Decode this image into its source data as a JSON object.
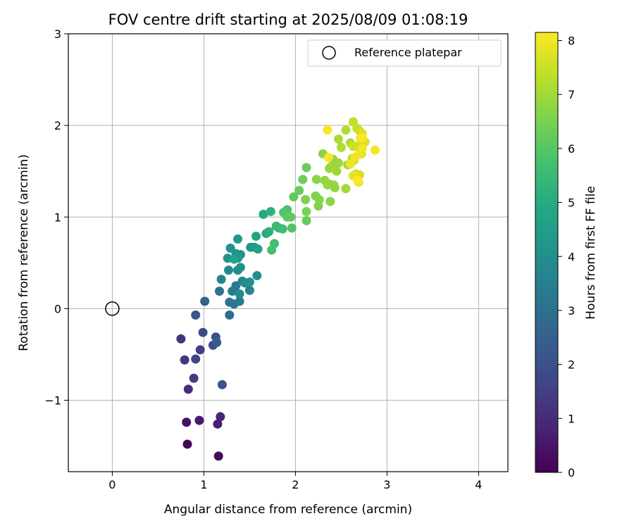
{
  "chart_data": {
    "type": "scatter",
    "title": "FOV centre drift starting at 2025/08/09 01:08:19",
    "xlabel": "Angular distance from reference (arcmin)",
    "ylabel": "Rotation from reference (arcmin)",
    "xlim": [
      -0.48,
      4.32
    ],
    "ylim": [
      -1.78,
      3.0
    ],
    "xticks": [
      0,
      1,
      2,
      3,
      4
    ],
    "yticks": [
      -1,
      0,
      1,
      2,
      3
    ],
    "xtick_labels": [
      "0",
      "1",
      "2",
      "3",
      "4"
    ],
    "ytick_labels": [
      "−1",
      "0",
      "1",
      "2",
      "3"
    ],
    "grid": true,
    "legend": {
      "position": "top-right",
      "entries": [
        "Reference platepar"
      ]
    },
    "colorbar": {
      "label": "Hours from first FF file",
      "range": [
        0,
        8.15
      ],
      "ticks": [
        0,
        1,
        2,
        3,
        4,
        5,
        6,
        7,
        8
      ],
      "tick_labels": [
        "0",
        "1",
        "2",
        "3",
        "4",
        "5",
        "6",
        "7",
        "8"
      ],
      "colormap": "viridis"
    },
    "reference_point": {
      "x": 0,
      "y": 0
    },
    "points": [
      [
        0.82,
        -1.48,
        0.1
      ],
      [
        1.16,
        -1.61,
        0.2
      ],
      [
        0.81,
        -1.24,
        0.4
      ],
      [
        0.95,
        -1.22,
        0.55
      ],
      [
        1.15,
        -1.26,
        0.7
      ],
      [
        1.18,
        -1.18,
        0.85
      ],
      [
        0.83,
        -0.88,
        1.0
      ],
      [
        0.75,
        -0.33,
        1.2
      ],
      [
        0.79,
        -0.56,
        1.3
      ],
      [
        0.89,
        -0.76,
        1.45
      ],
      [
        0.96,
        -0.45,
        1.5
      ],
      [
        0.91,
        -0.55,
        1.6
      ],
      [
        0.99,
        -0.26,
        1.8
      ],
      [
        1.1,
        -0.4,
        1.9
      ],
      [
        1.13,
        -0.31,
        2.0
      ],
      [
        1.2,
        -0.83,
        2.1
      ],
      [
        0.91,
        -0.07,
        2.2
      ],
      [
        1.14,
        -0.37,
        2.3
      ],
      [
        1.01,
        0.08,
        2.5
      ],
      [
        1.28,
        -0.07,
        2.9
      ],
      [
        1.17,
        0.19,
        3.0
      ],
      [
        1.28,
        0.07,
        3.1
      ],
      [
        1.33,
        0.05,
        3.2
      ],
      [
        1.35,
        0.25,
        3.3
      ],
      [
        1.31,
        0.19,
        3.4
      ],
      [
        1.39,
        0.08,
        3.5
      ],
      [
        1.42,
        0.3,
        3.6
      ],
      [
        1.5,
        0.2,
        3.6
      ],
      [
        1.19,
        0.32,
        3.7
      ],
      [
        1.27,
        0.42,
        3.8
      ],
      [
        1.37,
        0.42,
        3.9
      ],
      [
        1.39,
        0.16,
        3.9
      ],
      [
        1.45,
        0.28,
        3.95
      ],
      [
        1.5,
        0.29,
        4.0
      ],
      [
        1.58,
        0.36,
        4.0
      ],
      [
        1.4,
        0.45,
        4.05
      ],
      [
        1.29,
        0.66,
        4.1
      ],
      [
        1.26,
        0.55,
        4.15
      ],
      [
        1.35,
        0.6,
        4.2
      ],
      [
        1.4,
        0.59,
        4.2
      ],
      [
        1.37,
        0.55,
        4.25
      ],
      [
        1.51,
        0.67,
        4.3
      ],
      [
        1.55,
        0.67,
        4.35
      ],
      [
        1.37,
        0.76,
        4.4
      ],
      [
        1.59,
        0.65,
        4.6
      ],
      [
        1.33,
        0.54,
        4.8
      ],
      [
        1.57,
        0.79,
        4.8
      ],
      [
        1.65,
        1.03,
        4.9
      ],
      [
        1.68,
        0.82,
        5.0
      ],
      [
        1.71,
        0.84,
        5.1
      ],
      [
        1.73,
        1.06,
        5.2
      ],
      [
        1.82,
        0.88,
        5.3
      ],
      [
        1.79,
        0.9,
        5.5
      ],
      [
        1.86,
        0.87,
        5.6
      ],
      [
        1.77,
        0.71,
        5.6
      ],
      [
        1.74,
        0.64,
        5.75
      ],
      [
        1.91,
        1.08,
        5.8
      ],
      [
        1.87,
        1.05,
        5.9
      ],
      [
        1.96,
        0.88,
        5.9
      ],
      [
        1.91,
        1.0,
        6.0
      ],
      [
        1.95,
        1.0,
        6.1
      ],
      [
        2.12,
        0.96,
        6.2
      ],
      [
        1.98,
        1.22,
        6.2
      ],
      [
        2.04,
        1.29,
        6.3
      ],
      [
        2.12,
        1.54,
        6.3
      ],
      [
        2.08,
        1.41,
        6.35
      ],
      [
        2.12,
        1.06,
        6.5
      ],
      [
        2.25,
        1.12,
        6.6
      ],
      [
        2.11,
        1.19,
        6.55
      ],
      [
        2.22,
        1.23,
        6.6
      ],
      [
        2.26,
        1.19,
        6.65
      ],
      [
        2.23,
        1.41,
        6.7
      ],
      [
        2.3,
        1.69,
        6.7
      ],
      [
        2.38,
        1.17,
        6.7
      ],
      [
        2.37,
        1.36,
        6.75
      ],
      [
        2.32,
        1.4,
        6.8
      ],
      [
        2.35,
        1.35,
        6.85
      ],
      [
        2.42,
        1.35,
        6.85
      ],
      [
        2.43,
        1.32,
        6.8
      ],
      [
        2.37,
        1.53,
        6.9
      ],
      [
        2.47,
        1.59,
        6.9
      ],
      [
        2.4,
        1.56,
        6.95
      ],
      [
        2.41,
        1.63,
        6.85
      ],
      [
        2.45,
        1.5,
        6.95
      ],
      [
        2.55,
        1.31,
        7.0
      ],
      [
        2.57,
        1.57,
        7.0
      ],
      [
        2.47,
        1.85,
        7.1
      ],
      [
        2.5,
        1.76,
        7.15
      ],
      [
        2.6,
        1.81,
        7.2
      ],
      [
        2.55,
        1.95,
        7.2
      ],
      [
        2.62,
        1.64,
        7.3
      ],
      [
        2.64,
        1.62,
        7.3
      ],
      [
        2.63,
        2.04,
        7.4
      ],
      [
        2.67,
        1.97,
        7.45
      ],
      [
        2.7,
        1.94,
        7.5
      ],
      [
        2.63,
        1.77,
        7.5
      ],
      [
        2.69,
        1.78,
        7.55
      ],
      [
        2.72,
        1.69,
        7.55
      ],
      [
        2.66,
        1.47,
        7.6
      ],
      [
        2.7,
        1.46,
        7.6
      ],
      [
        2.73,
        1.91,
        7.65
      ],
      [
        2.76,
        1.82,
        7.7
      ],
      [
        2.67,
        1.45,
        7.7
      ],
      [
        2.69,
        1.38,
        7.8
      ],
      [
        2.63,
        1.45,
        7.85
      ],
      [
        2.6,
        1.58,
        7.9
      ],
      [
        2.65,
        1.65,
        7.95
      ],
      [
        2.7,
        1.7,
        8.0
      ],
      [
        2.73,
        1.75,
        8.0
      ],
      [
        2.71,
        1.86,
        8.05
      ],
      [
        2.87,
        1.73,
        8.05
      ],
      [
        2.35,
        1.95,
        8.1
      ],
      [
        2.36,
        1.65,
        8.1
      ],
      [
        2.73,
        1.87,
        8.12
      ],
      [
        2.68,
        1.4,
        8.15
      ]
    ]
  }
}
